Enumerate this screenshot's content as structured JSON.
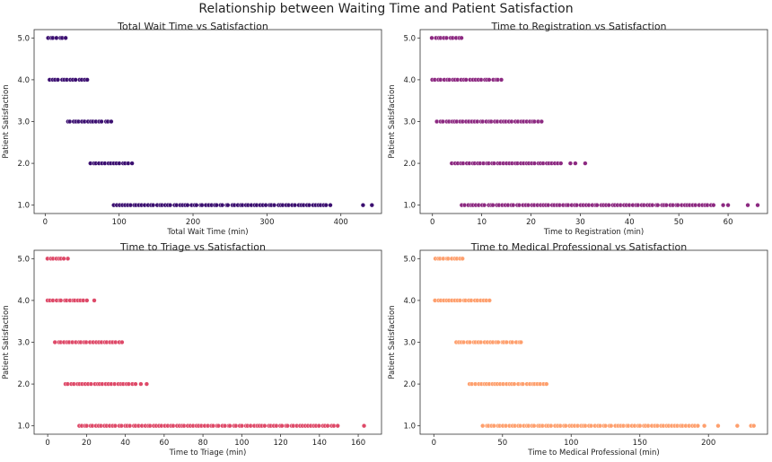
{
  "suptitle": "Relationship between Waiting Time and Patient Satisfaction",
  "chart_data": [
    {
      "type": "scatter",
      "title": "Total Wait Time vs Satisfaction",
      "xlabel": "Total Wait Time (min)",
      "ylabel": "Patient Satisfaction",
      "xlim": [
        -15,
        455
      ],
      "ylim": [
        0.8,
        5.2
      ],
      "xticks": [
        0,
        100,
        200,
        300,
        400
      ],
      "yticks": [
        1.0,
        2.0,
        3.0,
        4.0,
        5.0
      ],
      "color": "#3b0f70",
      "grid": false,
      "series": [
        {
          "y": 5.0,
          "x_range": [
            3,
            28
          ],
          "outliers": []
        },
        {
          "y": 4.0,
          "x_range": [
            6,
            58
          ],
          "outliers": []
        },
        {
          "y": 3.0,
          "x_range": [
            30,
            89
          ],
          "outliers": []
        },
        {
          "y": 2.0,
          "x_range": [
            61,
            117
          ],
          "outliers": []
        },
        {
          "y": 1.0,
          "x_range": [
            92,
            385
          ],
          "outliers": [
            430,
            442
          ]
        }
      ]
    },
    {
      "type": "scatter",
      "title": "Time to Registration vs Satisfaction",
      "xlabel": "Time to Registration (min)",
      "ylabel": "Patient Satisfaction",
      "xlim": [
        -2.5,
        68
      ],
      "ylim": [
        0.8,
        5.2
      ],
      "xticks": [
        0,
        10,
        20,
        30,
        40,
        50,
        60
      ],
      "yticks": [
        1.0,
        2.0,
        3.0,
        4.0,
        5.0
      ],
      "color": "#8c2981",
      "grid": false,
      "series": [
        {
          "y": 5.0,
          "x_range": [
            0,
            6
          ],
          "outliers": []
        },
        {
          "y": 4.0,
          "x_range": [
            0,
            14
          ],
          "outliers": []
        },
        {
          "y": 3.0,
          "x_range": [
            1,
            22
          ],
          "outliers": []
        },
        {
          "y": 2.0,
          "x_range": [
            4,
            26
          ],
          "outliers": [
            28,
            29,
            31
          ]
        },
        {
          "y": 1.0,
          "x_range": [
            6,
            57
          ],
          "outliers": [
            59,
            60,
            64,
            66
          ]
        }
      ]
    },
    {
      "type": "scatter",
      "title": "Time to Triage vs Satisfaction",
      "xlabel": "Time to Triage (min)",
      "ylabel": "Patient Satisfaction",
      "xlim": [
        -7,
        172
      ],
      "ylim": [
        0.8,
        5.2
      ],
      "xticks": [
        0,
        20,
        40,
        60,
        80,
        100,
        120,
        140,
        160
      ],
      "yticks": [
        1.0,
        2.0,
        3.0,
        4.0,
        5.0
      ],
      "color": "#de4968",
      "grid": false,
      "series": [
        {
          "y": 5.0,
          "x_range": [
            0,
            10
          ],
          "outliers": []
        },
        {
          "y": 4.0,
          "x_range": [
            0,
            20
          ],
          "outliers": [
            24
          ]
        },
        {
          "y": 3.0,
          "x_range": [
            4,
            38
          ],
          "outliers": []
        },
        {
          "y": 2.0,
          "x_range": [
            9,
            45
          ],
          "outliers": [
            48,
            51
          ]
        },
        {
          "y": 1.0,
          "x_range": [
            16,
            149
          ],
          "outliers": [
            163
          ]
        }
      ]
    },
    {
      "type": "scatter",
      "title": "Time to Medical Professional vs Satisfaction",
      "xlabel": "Time to Medical Professional (min)",
      "ylabel": "Patient Satisfaction",
      "xlim": [
        -10,
        243
      ],
      "ylim": [
        0.8,
        5.2
      ],
      "xticks": [
        0,
        50,
        100,
        150,
        200
      ],
      "yticks": [
        1.0,
        2.0,
        3.0,
        4.0,
        5.0
      ],
      "color": "#fe9f6d",
      "grid": false,
      "series": [
        {
          "y": 5.0,
          "x_range": [
            1,
            21
          ],
          "outliers": []
        },
        {
          "y": 4.0,
          "x_range": [
            1,
            40
          ],
          "outliers": []
        },
        {
          "y": 3.0,
          "x_range": [
            16,
            64
          ],
          "outliers": []
        },
        {
          "y": 2.0,
          "x_range": [
            26,
            82
          ],
          "outliers": []
        },
        {
          "y": 1.0,
          "x_range": [
            36,
            192
          ],
          "outliers": [
            197,
            207,
            221,
            231,
            233
          ]
        }
      ]
    }
  ]
}
